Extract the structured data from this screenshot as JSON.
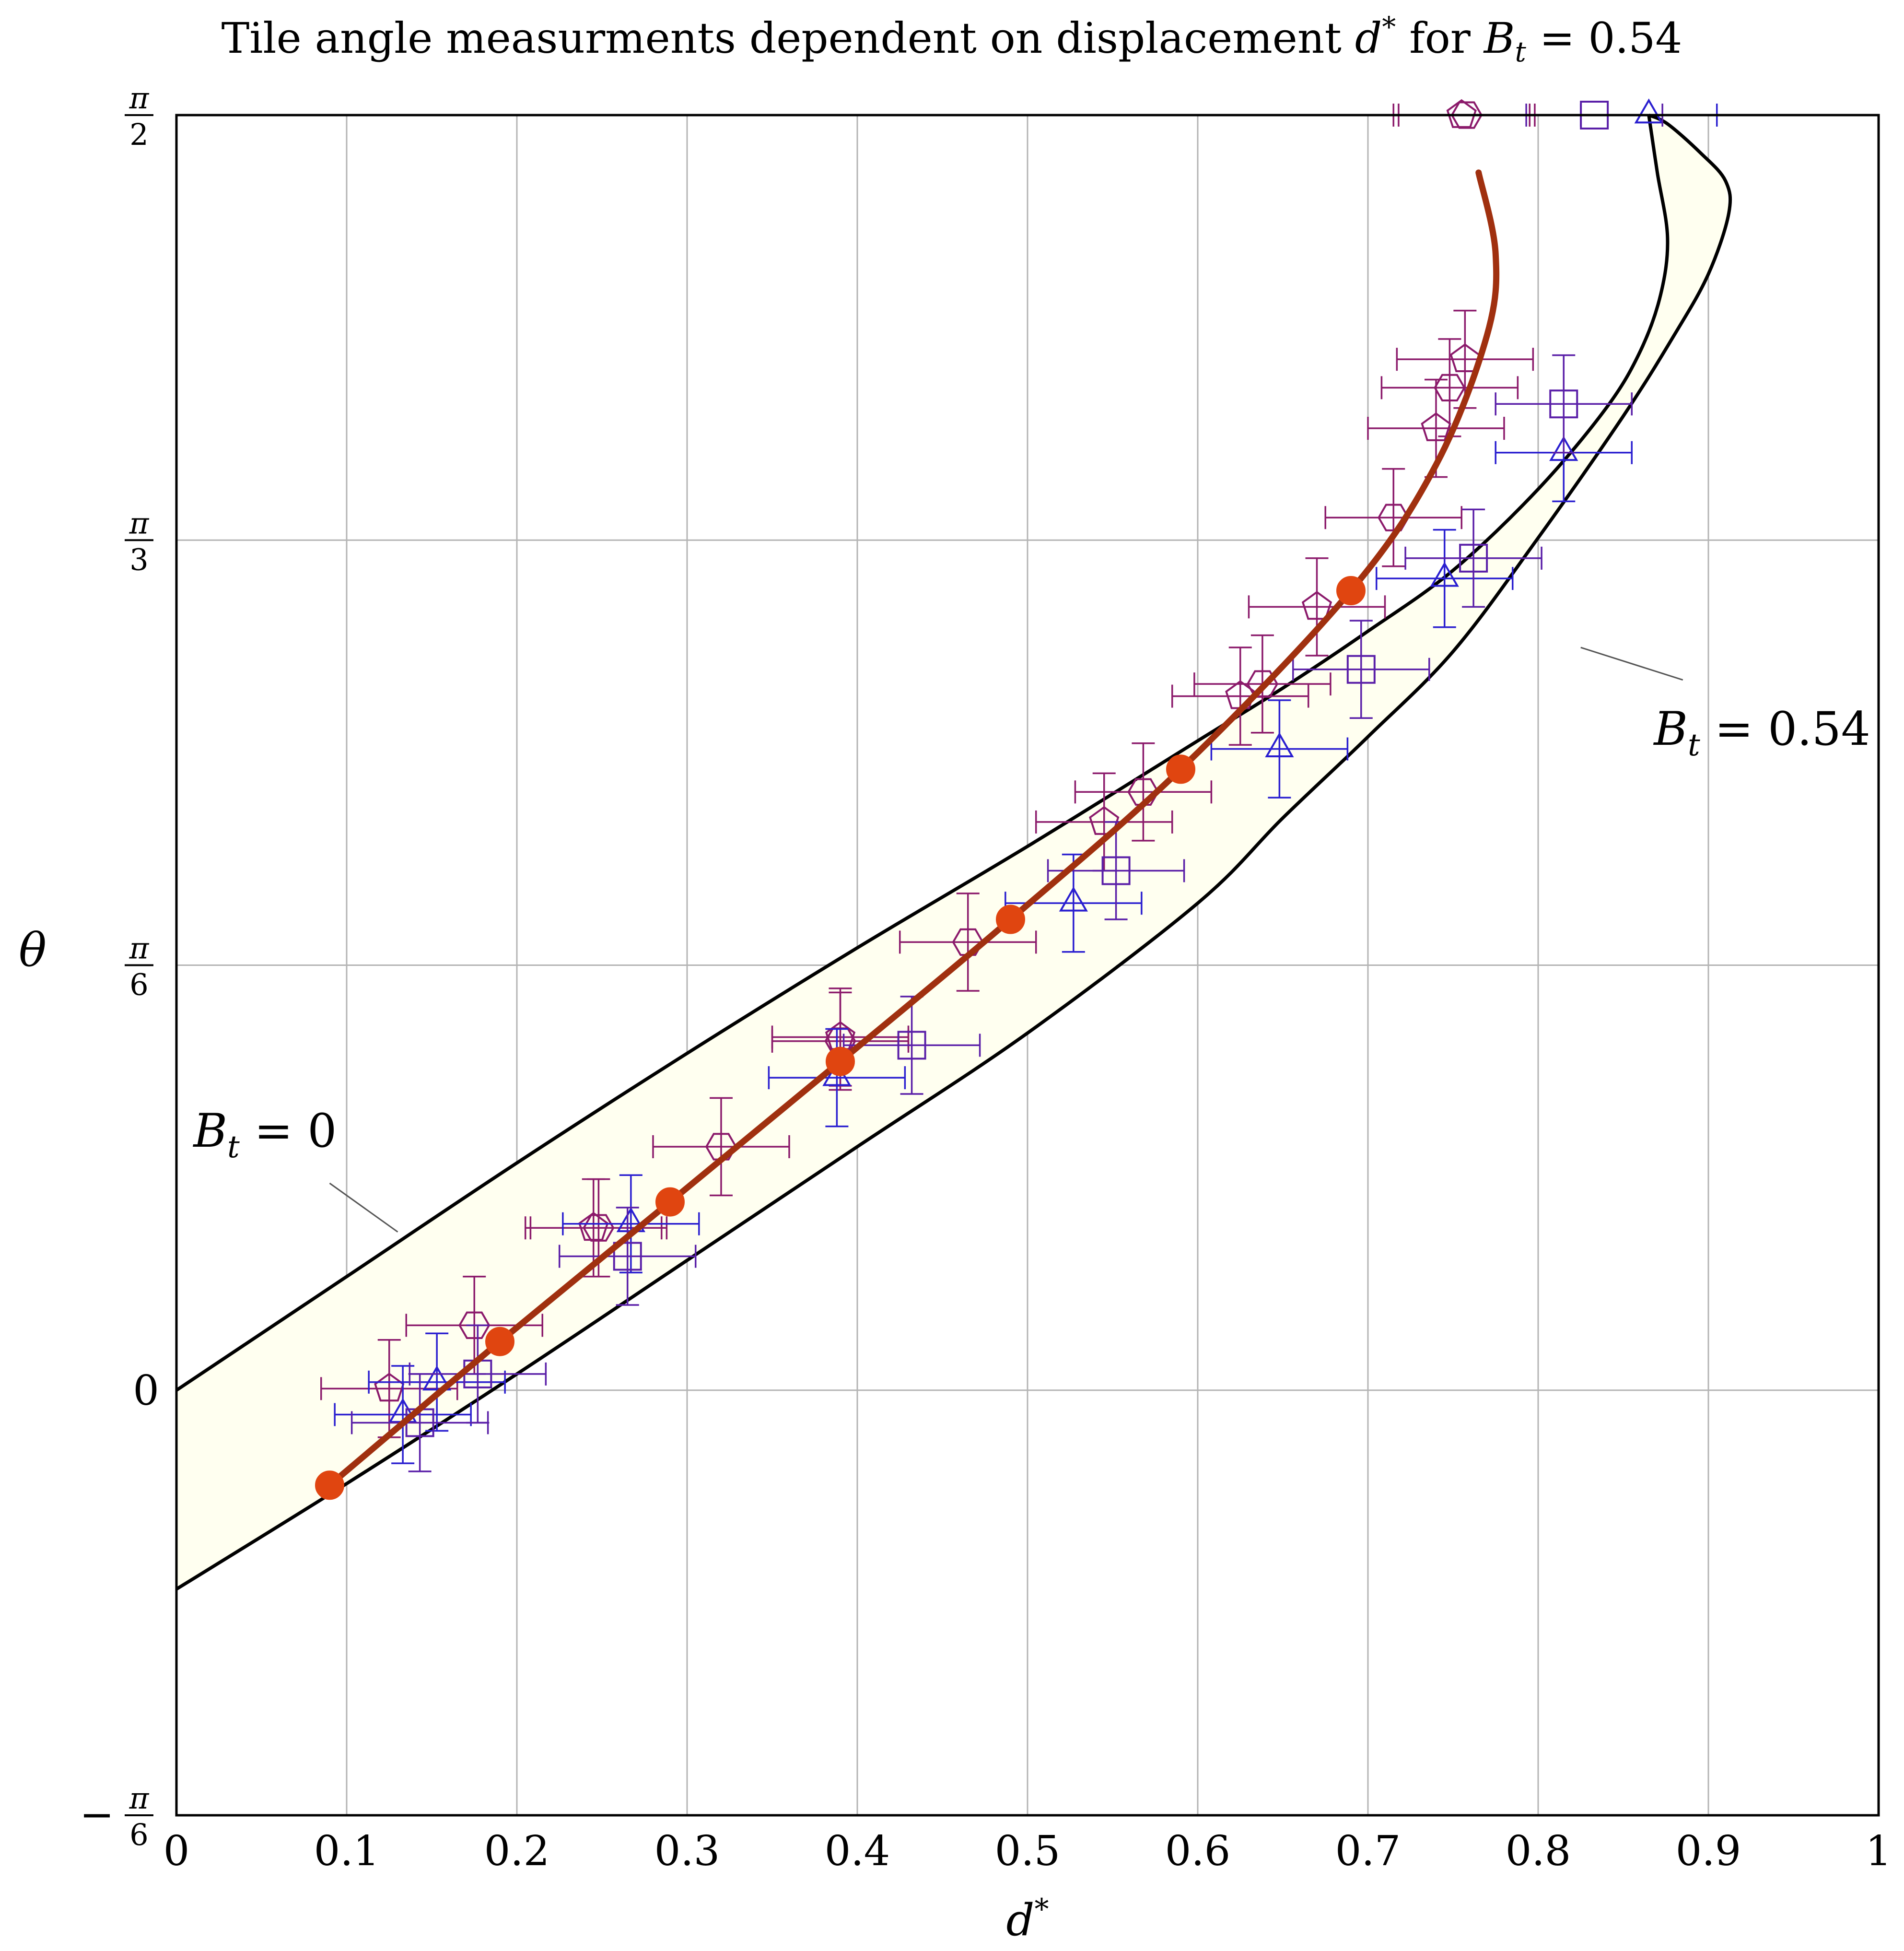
{
  "chart_data": {
    "type": "scatter",
    "title": "Tile angle measurments dependent on displacement d* for B_t = 0.54",
    "title_parts": {
      "prefix": "Tile angle measurments dependent on displacement ",
      "dvar": "d",
      "dsup": "*",
      "mid": " for ",
      "bvar": "B",
      "bsub": "t",
      "suffix": " = 0.54"
    },
    "xlabel": {
      "var": "d",
      "sup": "*"
    },
    "ylabel": "θ",
    "xlim": [
      0,
      1
    ],
    "ylim": [
      -0.5236,
      1.5708
    ],
    "grid": true,
    "x_ticks": [
      {
        "v": 0,
        "label": "0"
      },
      {
        "v": 0.1,
        "label": "0.1"
      },
      {
        "v": 0.2,
        "label": "0.2"
      },
      {
        "v": 0.3,
        "label": "0.3"
      },
      {
        "v": 0.4,
        "label": "0.4"
      },
      {
        "v": 0.5,
        "label": "0.5"
      },
      {
        "v": 0.6,
        "label": "0.6"
      },
      {
        "v": 0.7,
        "label": "0.7"
      },
      {
        "v": 0.8,
        "label": "0.8"
      },
      {
        "v": 0.9,
        "label": "0.9"
      },
      {
        "v": 1,
        "label": "1"
      }
    ],
    "y_ticks": [
      {
        "v": -0.5236,
        "sign": "−",
        "num": "π",
        "den": "6",
        "text": ""
      },
      {
        "v": 0,
        "sign": "",
        "num": "",
        "den": "",
        "text": "0"
      },
      {
        "v": 0.5236,
        "sign": "",
        "num": "π",
        "den": "6",
        "text": ""
      },
      {
        "v": 1.0472,
        "sign": "",
        "num": "π",
        "den": "3",
        "text": ""
      },
      {
        "v": 1.5708,
        "sign": "",
        "num": "π",
        "den": "2",
        "text": ""
      }
    ],
    "annotations": [
      {
        "var": "B",
        "sub": "t",
        "rest": " = 0",
        "x": 0.01,
        "y": 0.3,
        "pointer_from": [
          0.09,
          0.255
        ],
        "pointer_to": [
          0.13,
          0.195
        ]
      },
      {
        "var": "B",
        "sub": "t",
        "rest": " = 0.54",
        "x": 0.868,
        "y": 0.795,
        "pointer_from": [
          0.885,
          0.875
        ],
        "pointer_to": [
          0.825,
          0.915
        ]
      }
    ],
    "colors": {
      "band_fill": "#fffff0",
      "band_edge": "#000000",
      "fit_line": "#a0300f",
      "fit_points": "#e04510",
      "magenta": "#8b1a6b",
      "blue": "#2a1fd0",
      "square": "#5a1fa8",
      "grid": "#b4b4b4"
    },
    "band_lower_Bt0": {
      "x": [
        0,
        1
      ],
      "y": [
        0,
        1.0
      ]
    },
    "band_upper_Bt054": {
      "x": [
        0.0,
        0.1,
        0.2,
        0.3,
        0.4,
        0.5,
        0.6,
        0.65,
        0.7,
        0.75,
        0.8,
        0.85,
        0.88,
        0.9,
        0.912,
        0.91,
        0.895,
        0.876,
        0.865
      ],
      "y": [
        -0.245,
        -0.115,
        0.02,
        0.16,
        0.3,
        0.44,
        0.6,
        0.705,
        0.805,
        0.91,
        1.05,
        1.2,
        1.3,
        1.375,
        1.45,
        1.49,
        1.525,
        1.56,
        1.5708
      ]
    },
    "band_lower_Bt0_curve": {
      "x": [
        0.0,
        0.1,
        0.2,
        0.3,
        0.4,
        0.5,
        0.6,
        0.65,
        0.7,
        0.75,
        0.8,
        0.84,
        0.86,
        0.872,
        0.876,
        0.87,
        0.865
      ],
      "y": [
        0.0,
        0.14,
        0.28,
        0.415,
        0.545,
        0.67,
        0.8,
        0.865,
        0.935,
        1.01,
        1.11,
        1.21,
        1.28,
        1.35,
        1.42,
        1.5,
        1.5708
      ]
    },
    "fit_line": {
      "x": [
        0.09,
        0.19,
        0.29,
        0.39,
        0.49,
        0.59,
        0.69,
        0.74,
        0.77,
        0.775,
        0.765
      ],
      "y": [
        -0.117,
        0.06,
        0.232,
        0.405,
        0.58,
        0.765,
        0.985,
        1.14,
        1.3,
        1.4,
        1.5
      ]
    },
    "fit_points": {
      "x": [
        0.09,
        0.19,
        0.29,
        0.39,
        0.49,
        0.59,
        0.69
      ],
      "y": [
        -0.117,
        0.06,
        0.232,
        0.405,
        0.58,
        0.765,
        0.985
      ]
    },
    "series": [
      {
        "marker": "pentagon",
        "color_key": "magenta",
        "points": [
          {
            "x": 0.125,
            "y": 0.002,
            "xerr": 0.04,
            "yerr": 0.06
          },
          {
            "x": 0.245,
            "y": 0.2,
            "xerr": 0.04,
            "yerr": 0.06
          },
          {
            "x": 0.39,
            "y": 0.435,
            "xerr": 0.04,
            "yerr": 0.06
          },
          {
            "x": 0.545,
            "y": 0.7,
            "xerr": 0.04,
            "yerr": 0.06
          },
          {
            "x": 0.625,
            "y": 0.855,
            "xerr": 0.04,
            "yerr": 0.06
          },
          {
            "x": 0.67,
            "y": 0.965,
            "xerr": 0.04,
            "yerr": 0.06
          },
          {
            "x": 0.74,
            "y": 1.185,
            "xerr": 0.04,
            "yerr": 0.06
          },
          {
            "x": 0.757,
            "y": 1.27,
            "xerr": 0.04,
            "yerr": 0.06
          },
          {
            "x": 0.755,
            "y": 1.5708,
            "xerr": 0.04,
            "yerr": 0.0
          }
        ]
      },
      {
        "marker": "hexagon",
        "color_key": "magenta",
        "points": [
          {
            "x": 0.175,
            "y": 0.08,
            "xerr": 0.04,
            "yerr": 0.06
          },
          {
            "x": 0.248,
            "y": 0.2,
            "xerr": 0.04,
            "yerr": 0.06
          },
          {
            "x": 0.32,
            "y": 0.3,
            "xerr": 0.04,
            "yerr": 0.06
          },
          {
            "x": 0.39,
            "y": 0.43,
            "xerr": 0.04,
            "yerr": 0.06
          },
          {
            "x": 0.465,
            "y": 0.552,
            "xerr": 0.04,
            "yerr": 0.06
          },
          {
            "x": 0.568,
            "y": 0.737,
            "xerr": 0.04,
            "yerr": 0.06
          },
          {
            "x": 0.638,
            "y": 0.87,
            "xerr": 0.04,
            "yerr": 0.06
          },
          {
            "x": 0.715,
            "y": 1.075,
            "xerr": 0.04,
            "yerr": 0.06
          },
          {
            "x": 0.748,
            "y": 1.235,
            "xerr": 0.04,
            "yerr": 0.06
          },
          {
            "x": 0.758,
            "y": 1.5708,
            "xerr": 0.04,
            "yerr": 0.0
          }
        ]
      },
      {
        "marker": "triangle",
        "color_key": "blue",
        "points": [
          {
            "x": 0.133,
            "y": -0.03,
            "xerr": 0.04,
            "yerr": 0.06
          },
          {
            "x": 0.153,
            "y": 0.01,
            "xerr": 0.04,
            "yerr": 0.06
          },
          {
            "x": 0.267,
            "y": 0.205,
            "xerr": 0.04,
            "yerr": 0.06
          },
          {
            "x": 0.388,
            "y": 0.385,
            "xerr": 0.04,
            "yerr": 0.06
          },
          {
            "x": 0.527,
            "y": 0.6,
            "xerr": 0.04,
            "yerr": 0.06
          },
          {
            "x": 0.648,
            "y": 0.79,
            "xerr": 0.04,
            "yerr": 0.06
          },
          {
            "x": 0.745,
            "y": 1.0,
            "xerr": 0.04,
            "yerr": 0.06
          },
          {
            "x": 0.815,
            "y": 1.155,
            "xerr": 0.04,
            "yerr": 0.06
          },
          {
            "x": 0.865,
            "y": 1.5708,
            "xerr": 0.04,
            "yerr": 0.0
          }
        ]
      },
      {
        "marker": "square",
        "color_key": "square",
        "points": [
          {
            "x": 0.143,
            "y": -0.04,
            "xerr": 0.04,
            "yerr": 0.06
          },
          {
            "x": 0.177,
            "y": 0.02,
            "xerr": 0.04,
            "yerr": 0.06
          },
          {
            "x": 0.265,
            "y": 0.165,
            "xerr": 0.04,
            "yerr": 0.06
          },
          {
            "x": 0.432,
            "y": 0.425,
            "xerr": 0.04,
            "yerr": 0.06
          },
          {
            "x": 0.552,
            "y": 0.64,
            "xerr": 0.04,
            "yerr": 0.06
          },
          {
            "x": 0.696,
            "y": 0.888,
            "xerr": 0.04,
            "yerr": 0.06
          },
          {
            "x": 0.762,
            "y": 1.025,
            "xerr": 0.04,
            "yerr": 0.06
          },
          {
            "x": 0.815,
            "y": 1.215,
            "xerr": 0.04,
            "yerr": 0.06
          },
          {
            "x": 0.833,
            "y": 1.5708,
            "xerr": 0.04,
            "yerr": 0.0
          }
        ]
      }
    ]
  }
}
